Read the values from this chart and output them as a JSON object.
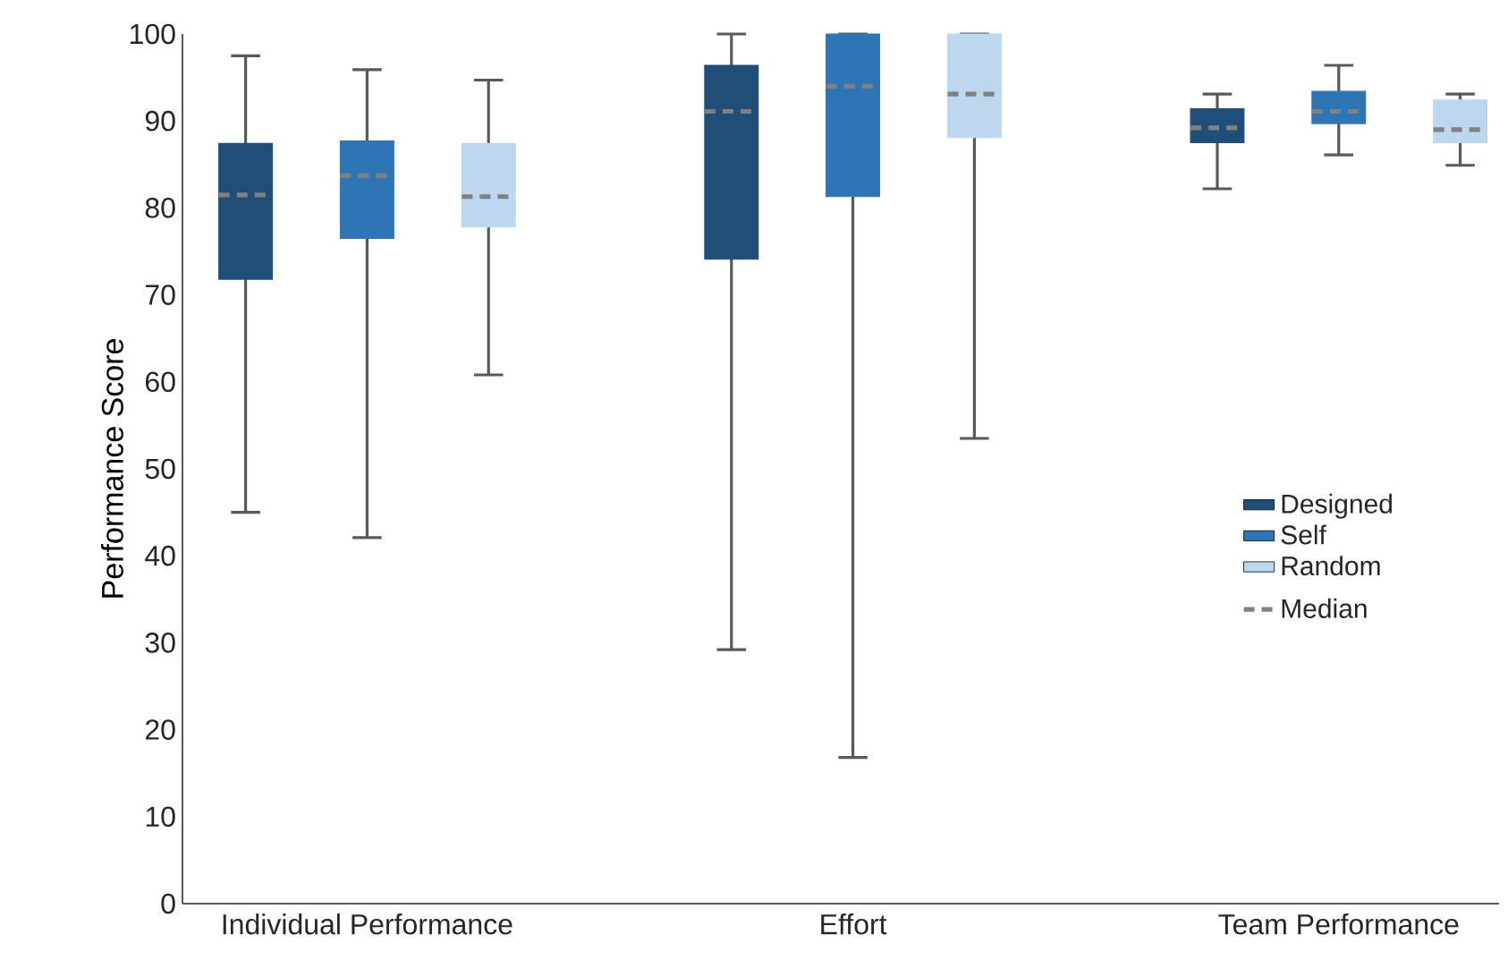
{
  "chart_data": {
    "type": "box",
    "ylabel": "Performance Score",
    "categories": [
      "Individual Performance",
      "Effort",
      "Team Performance"
    ],
    "ylim": [
      0,
      100
    ],
    "yticks": [
      0,
      10,
      20,
      30,
      40,
      50,
      60,
      70,
      80,
      90,
      100
    ],
    "legend": "right",
    "annotations": [
      "Median"
    ],
    "series": [
      {
        "name": "Designed",
        "color": "#1f4e79",
        "boxes": [
          {
            "low": 45,
            "q1": 71.8,
            "median": 81.5,
            "q3": 87.4,
            "high": 97.5
          },
          {
            "low": 29.2,
            "q1": 74.1,
            "median": 91.1,
            "q3": 96.4,
            "high": 100
          },
          {
            "low": 82.2,
            "q1": 87.5,
            "median": 89.2,
            "q3": 91.4,
            "high": 93.1
          }
        ]
      },
      {
        "name": "Self",
        "color": "#2e75b6",
        "boxes": [
          {
            "low": 42.1,
            "q1": 76.5,
            "median": 83.7,
            "q3": 87.7,
            "high": 95.9
          },
          {
            "low": 16.8,
            "q1": 81.3,
            "median": 94.0,
            "q3": 100,
            "high": 100
          },
          {
            "low": 86.1,
            "q1": 89.7,
            "median": 91.1,
            "q3": 93.4,
            "high": 96.4
          }
        ]
      },
      {
        "name": "Random",
        "color": "#bdd7ee",
        "boxes": [
          {
            "low": 60.8,
            "q1": 77.8,
            "median": 81.3,
            "q3": 87.4,
            "high": 94.7
          },
          {
            "low": 53.5,
            "q1": 88.1,
            "median": 93.1,
            "q3": 100,
            "high": 100
          },
          {
            "low": 84.9,
            "q1": 87.5,
            "median": 89.0,
            "q3": 92.4,
            "high": 93.1
          }
        ]
      }
    ]
  }
}
